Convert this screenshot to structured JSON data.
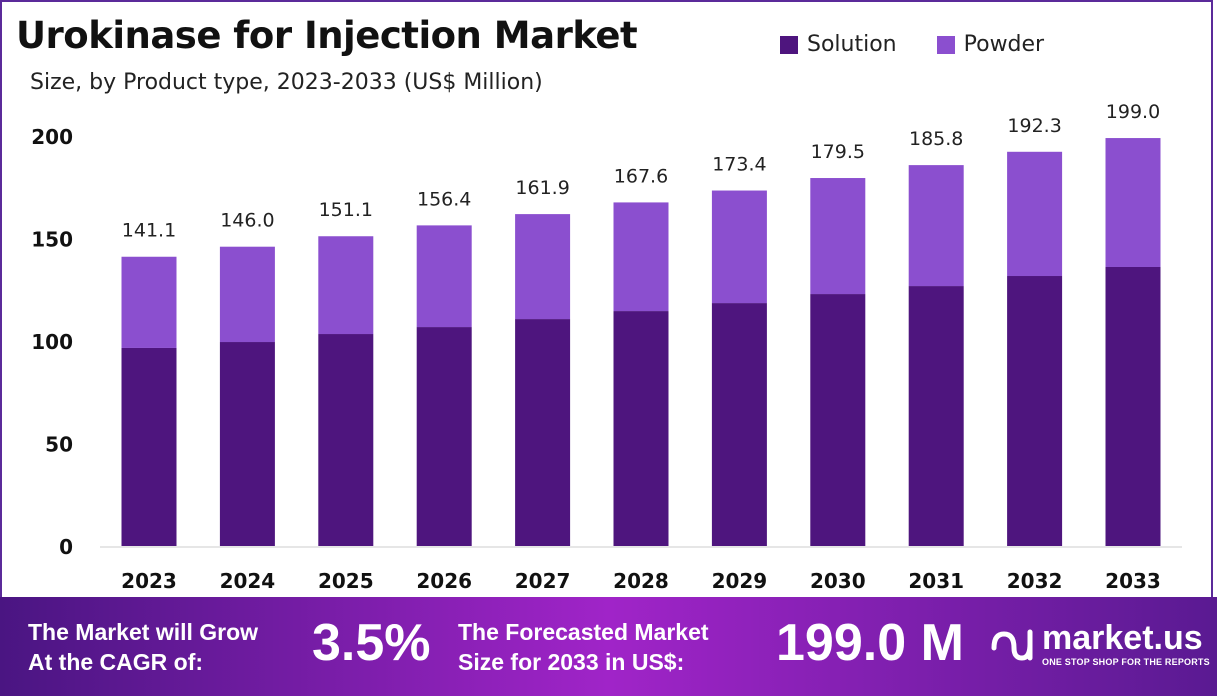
{
  "title": "Urokinase for Injection Market",
  "subtitle": "Size, by Product type, 2023-2033 (US$ Million)",
  "colors": {
    "solution": "#4e157e",
    "powder": "#8b4fcf",
    "footer_start": "#4a1582",
    "footer_mid": "#a024c8"
  },
  "chart_data": {
    "type": "bar",
    "stacked": true,
    "categories": [
      "2023",
      "2024",
      "2025",
      "2026",
      "2027",
      "2028",
      "2029",
      "2030",
      "2031",
      "2032",
      "2033"
    ],
    "series": [
      {
        "name": "Solution",
        "values": [
          96.6,
          99.5,
          103.4,
          106.8,
          110.7,
          114.6,
          118.5,
          122.9,
          126.8,
          131.7,
          136.1
        ]
      },
      {
        "name": "Powder",
        "values": [
          44.5,
          46.5,
          47.7,
          49.6,
          51.2,
          53.0,
          54.9,
          56.6,
          59.0,
          60.6,
          62.9
        ]
      }
    ],
    "totals": [
      "141.1",
      "146.0",
      "151.1",
      "156.4",
      "161.9",
      "167.6",
      "173.4",
      "179.5",
      "185.8",
      "192.3",
      "199.0"
    ],
    "yticks": [
      "0",
      "50",
      "100",
      "150",
      "200"
    ],
    "ylim": [
      0,
      200
    ],
    "grid": false,
    "legend": "top-right"
  },
  "footer": {
    "cagr_label_1": "The Market will Grow",
    "cagr_label_2": "At the CAGR of:",
    "cagr_value": "3.5%",
    "forecast_label_1": "The Forecasted Market",
    "forecast_label_2": "Size for 2033 in US$:",
    "forecast_value": "199.0 M",
    "brand": "market.us",
    "tagline": "ONE STOP SHOP FOR THE REPORTS"
  }
}
